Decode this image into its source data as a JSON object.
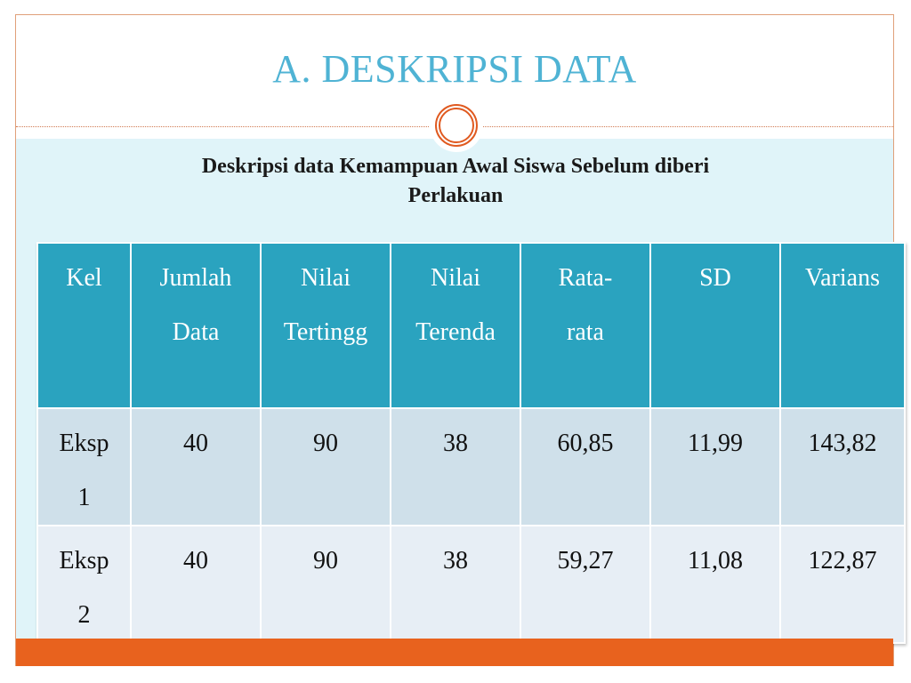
{
  "slide": {
    "title": "A. DESKRIPSI DATA",
    "subtitle_line1": "Deskripsi data Kemampuan Awal Siswa Sebelum diberi",
    "subtitle_line2": "Perlakuan"
  },
  "table": {
    "headers": [
      {
        "line1": "Kel",
        "line2": ""
      },
      {
        "line1": "Jumlah",
        "line2": "Data"
      },
      {
        "line1": "Nilai",
        "line2": "Tertingg"
      },
      {
        "line1": "Nilai",
        "line2": "Terenda"
      },
      {
        "line1": "Rata-",
        "line2": "rata"
      },
      {
        "line1": "SD",
        "line2": ""
      },
      {
        "line1": "Varians",
        "line2": ""
      }
    ],
    "rows": [
      {
        "kel_line1": "Eksp",
        "kel_line2": "1",
        "jumlah": "40",
        "tertinggi": "90",
        "terendah": "38",
        "rata": "60,85",
        "sd": "11,99",
        "varians": "143,82"
      },
      {
        "kel_line1": "Eksp",
        "kel_line2": "2",
        "jumlah": "40",
        "tertinggi": "90",
        "terendah": "38",
        "rata": "59,27",
        "sd": "11,08",
        "varians": "122,87"
      }
    ]
  },
  "colors": {
    "title": "#4fb3d4",
    "header_bg": "#2aa3bf",
    "row1_bg": "#cfe0ea",
    "row2_bg": "#e7eef5",
    "accent_orange": "#e8621e",
    "content_bg": "#e0f4f9"
  }
}
